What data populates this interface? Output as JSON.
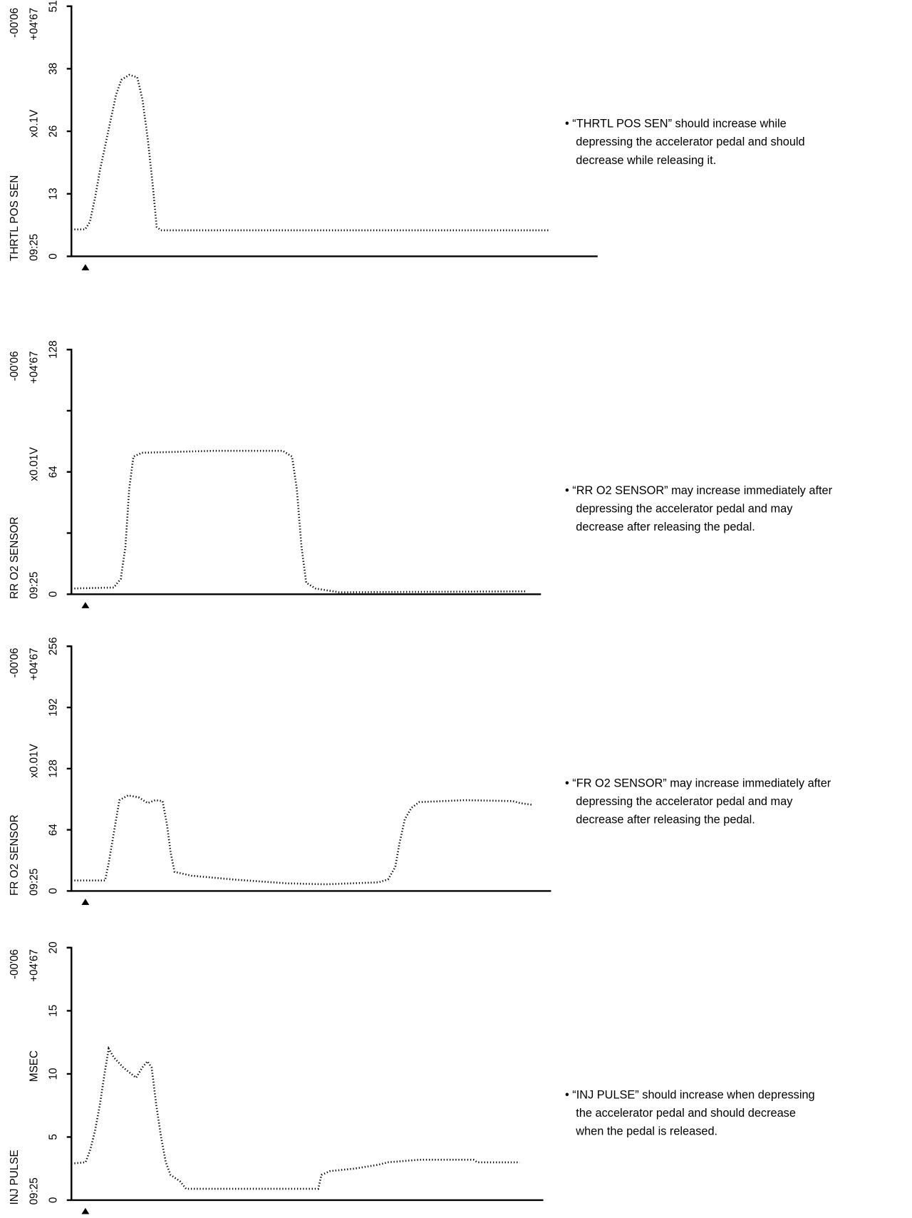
{
  "chart_data": [
    {
      "type": "line",
      "title": "THRTL POS SEN",
      "ylabel": "x0.1V",
      "time_label": "09:25",
      "cursor_left": "-00'06",
      "cursor_right": "+04'67",
      "yticks": [
        "0",
        "13",
        "26",
        "38",
        "51"
      ],
      "ylim": [
        0,
        51
      ],
      "note": [
        "• “THRTL POS SEN” should increase while",
        "depressing the accelerator pedal and should",
        "decrease while releasing it."
      ],
      "x": [
        0,
        2.6,
        3.5,
        4.5,
        5.5,
        6.5,
        7.5,
        8.5,
        9.5,
        11,
        12.5,
        13.5,
        14.5,
        15.5,
        16.2,
        17,
        91
      ],
      "y": [
        5.5,
        5.5,
        7,
        12,
        18,
        23,
        28,
        33,
        36,
        37,
        36.5,
        32,
        24,
        14,
        6,
        5.3,
        5.3
      ]
    },
    {
      "type": "line",
      "title": "RR O2 SENSOR",
      "ylabel": "x0.01V",
      "time_label": "09:25",
      "cursor_left": "-00'06",
      "cursor_right": "+04'67",
      "yticks": [
        "0",
        "",
        "64",
        "",
        "128"
      ],
      "ylim": [
        0,
        128
      ],
      "note": [
        "• “RR O2 SENSOR” may increase immediately after",
        "depressing the accelerator pedal and may",
        "decrease after releasing the pedal."
      ],
      "x": [
        0,
        9,
        10.5,
        11.5,
        12.3,
        13.2,
        15,
        30,
        45,
        47,
        48,
        49,
        50,
        52,
        57,
        96.7
      ],
      "y": [
        3,
        3.5,
        8,
        25,
        55,
        72,
        74,
        75,
        75,
        72,
        55,
        25,
        6,
        3,
        1,
        1.5
      ]
    },
    {
      "type": "line",
      "title": "FR O2 SENSOR",
      "ylabel": "x0.01V",
      "time_label": "09:25",
      "cursor_left": "-00'06",
      "cursor_right": "+04'67",
      "yticks": [
        "0",
        "64",
        "128",
        "192",
        "256"
      ],
      "ylim": [
        0,
        256
      ],
      "note": [
        "• “FR O2 SENSOR” may increase immediately after",
        "depressing the accelerator pedal and may",
        "decrease after releasing the pedal."
      ],
      "x": [
        0,
        7,
        7.8,
        8.8,
        10,
        11.8,
        14,
        15.9,
        17.5,
        19,
        19.9,
        20.7,
        21.5,
        25,
        33.7,
        45,
        53,
        64,
        66,
        67.5,
        68.4,
        69.5,
        70.9,
        72.5,
        82,
        92,
        93.5,
        96.3
      ],
      "y": [
        11,
        11,
        30,
        60,
        95,
        100,
        98,
        92,
        95,
        94,
        70,
        40,
        20,
        16,
        12,
        8,
        7,
        9,
        12,
        25,
        50,
        75,
        87,
        93,
        95,
        94,
        92,
        90
      ]
    },
    {
      "type": "line",
      "title": "INJ PULSE",
      "ylabel": "MSEC",
      "time_label": "09:25",
      "cursor_left": "-00'06",
      "cursor_right": "+04'67",
      "yticks": [
        "0",
        "5",
        "10",
        "15",
        "20"
      ],
      "ylim": [
        0,
        20
      ],
      "note": [
        "• “INJ PULSE” should increase when depressing",
        "the accelerator pedal and should decrease",
        "when the pedal is released."
      ],
      "x": [
        0,
        3,
        4,
        5,
        6,
        7,
        7.9,
        9,
        11,
        13.7,
        15,
        16.1,
        17,
        18,
        19,
        20,
        21,
        23,
        24.3,
        52.3,
        53,
        54.8,
        60,
        65,
        67.1,
        73.7,
        85.2,
        86,
        95
      ],
      "y": [
        2.9,
        3,
        4,
        5.5,
        7.5,
        10,
        12,
        11.3,
        10.5,
        9.7,
        10.5,
        11,
        10.5,
        7.5,
        5,
        3,
        2,
        1.5,
        0.9,
        0.9,
        2,
        2.3,
        2.5,
        2.8,
        3,
        3.2,
        3.2,
        3,
        3
      ]
    }
  ]
}
